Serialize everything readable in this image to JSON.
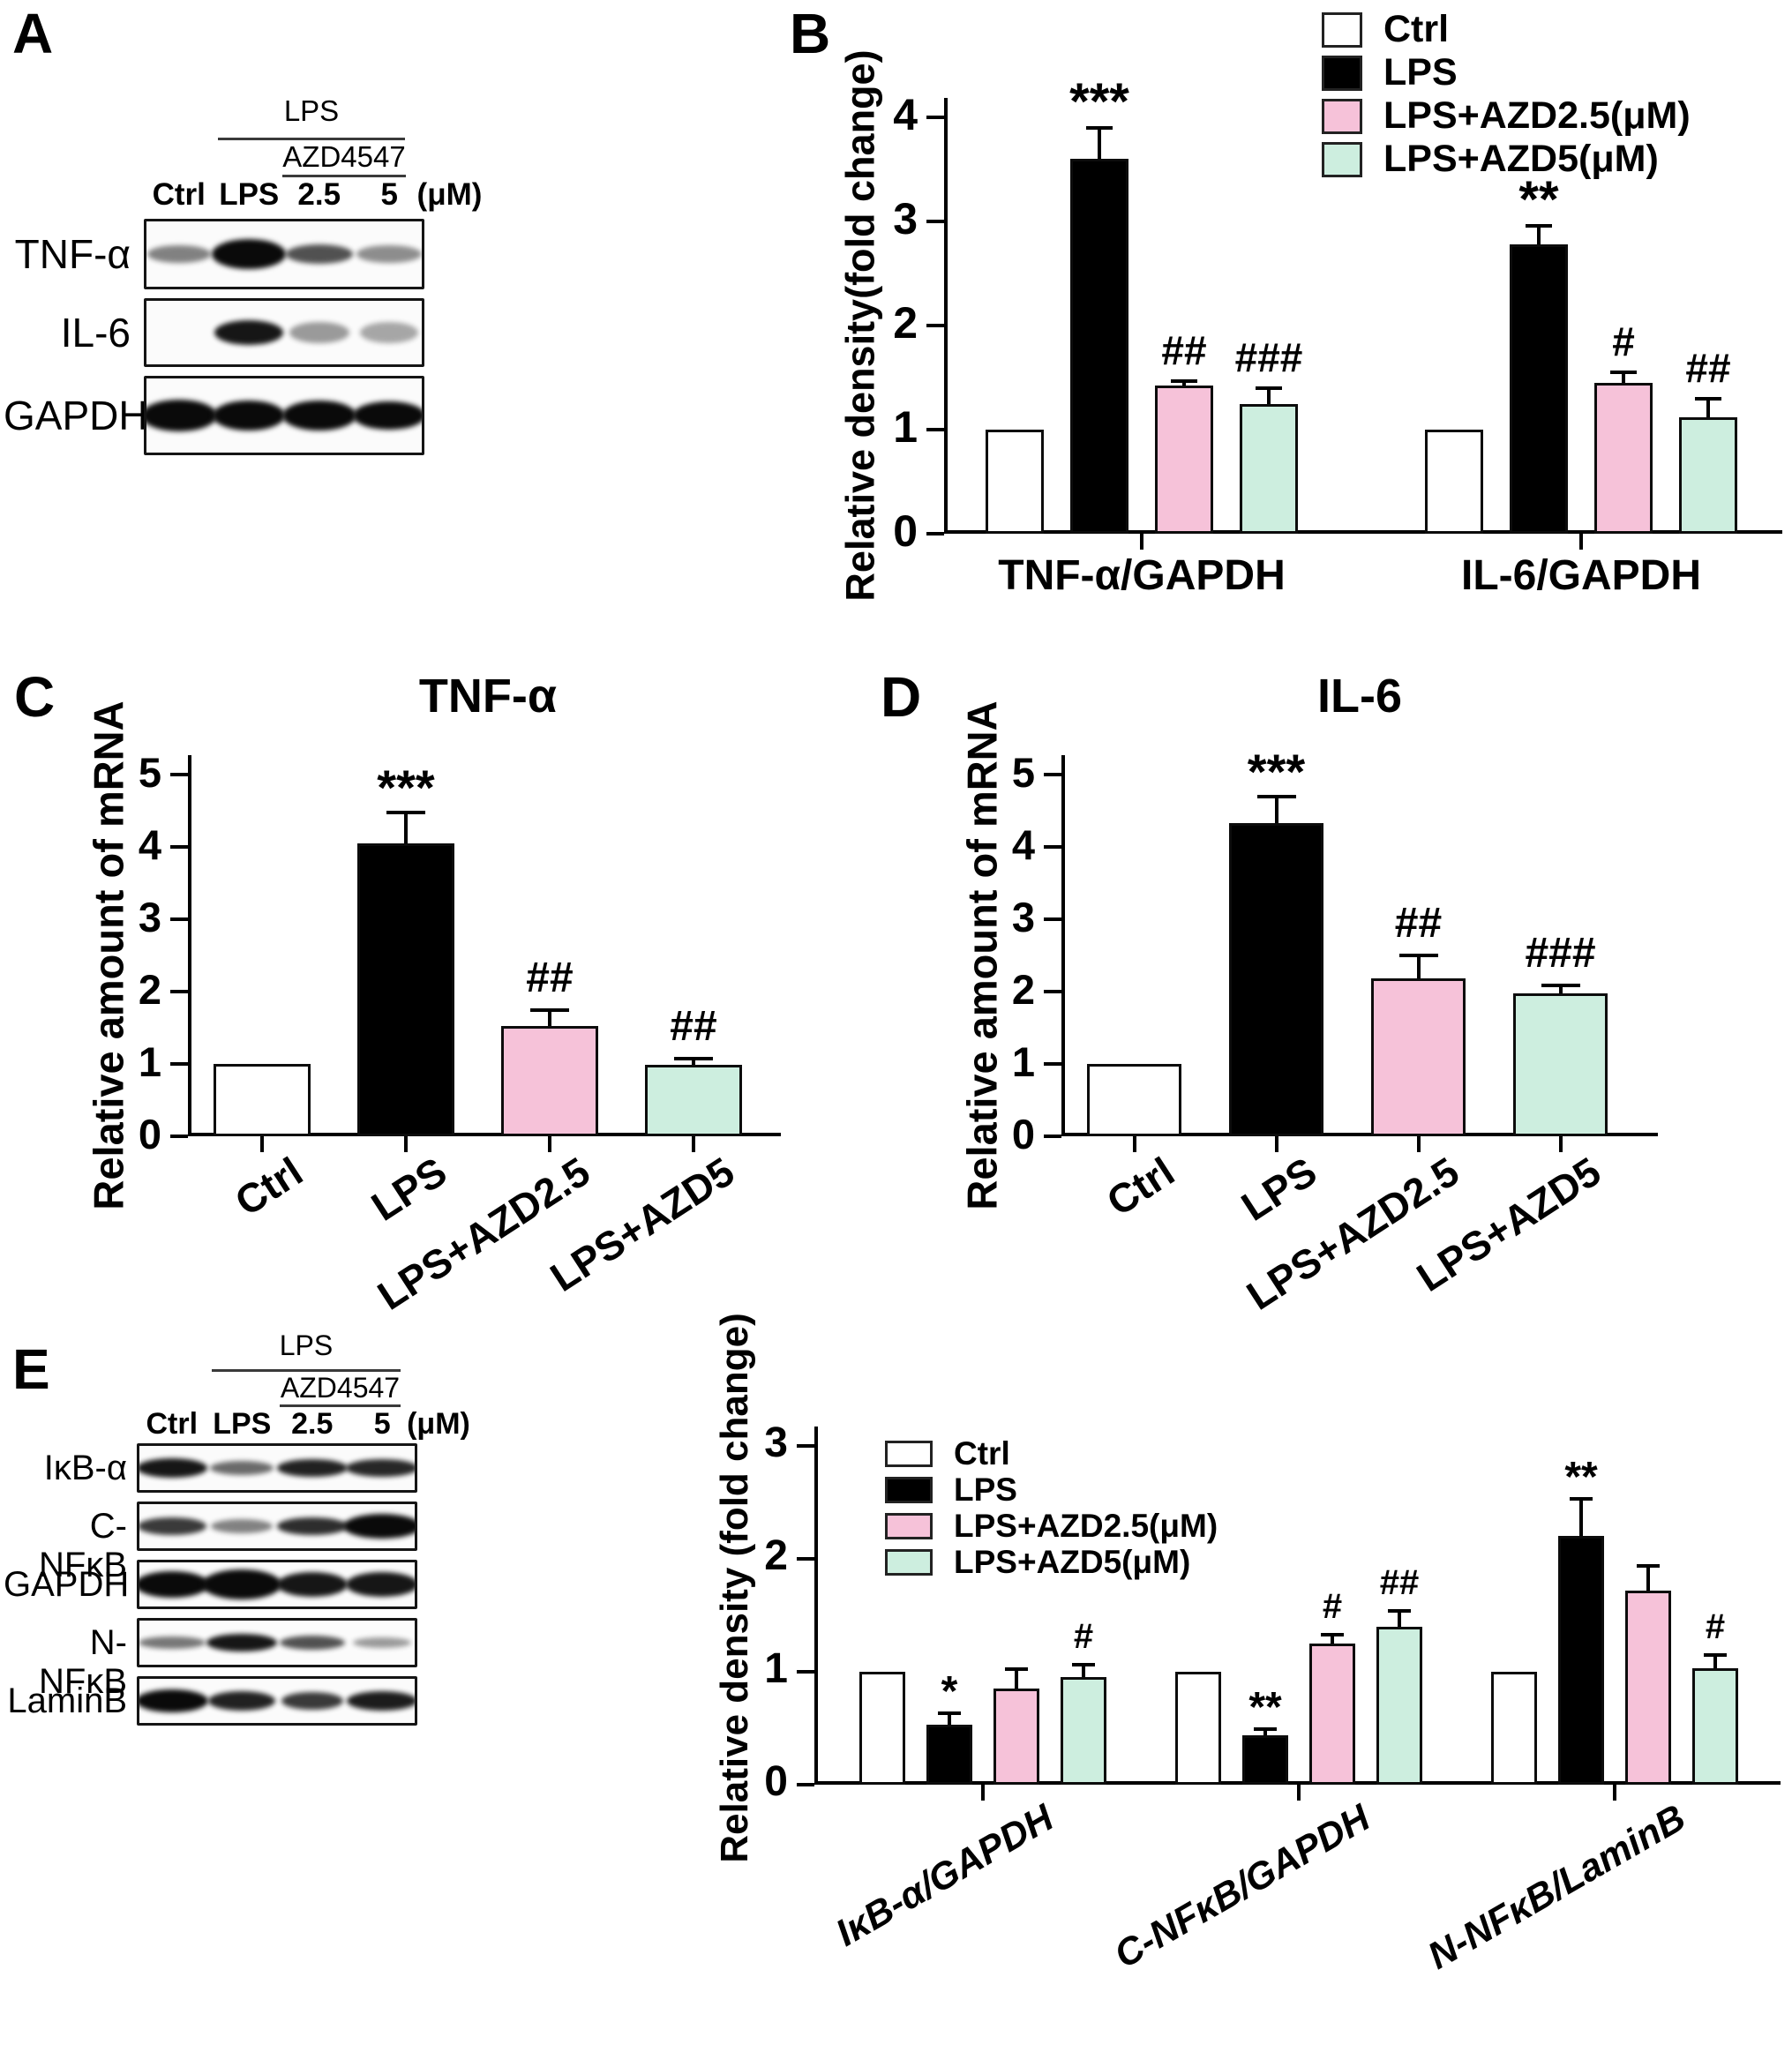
{
  "colors": {
    "ctrl": "#FFFFFF",
    "lps": "#000000",
    "lps_azd2_5": "#F6C2D9",
    "lps_azd5": "#CDEEDF",
    "outline": "#000000",
    "band": "#0A0A0A"
  },
  "legend_items": [
    {
      "key": "ctrl",
      "label": "Ctrl"
    },
    {
      "key": "lps",
      "label": "LPS"
    },
    {
      "key": "lps_azd2_5",
      "label": "LPS+AZD2.5(μM)"
    },
    {
      "key": "lps_azd5",
      "label": "LPS+AZD5(μM)"
    }
  ],
  "panels": {
    "A": {
      "letter": "A"
    },
    "B": {
      "letter": "B"
    },
    "C": {
      "letter": "C",
      "title": "TNF-α"
    },
    "D": {
      "letter": "D",
      "title": "IL-6"
    },
    "E": {
      "letter": "E"
    }
  },
  "blots": [
    {
      "panel": "A",
      "header": {
        "line1": "LPS",
        "line2": "AZD4547"
      },
      "lanes": [
        "Ctrl",
        "LPS",
        "2.5",
        "5"
      ],
      "unit": "(μM)",
      "rows": [
        {
          "label": "TNF-α",
          "bands": [
            {
              "w": 72,
              "h": 20,
              "d": 0.5
            },
            {
              "w": 84,
              "h": 34,
              "d": 1
            },
            {
              "w": 76,
              "h": 22,
              "d": 0.7
            },
            {
              "w": 74,
              "h": 20,
              "d": 0.45
            }
          ]
        },
        {
          "label": "IL-6",
          "bands": [
            {
              "w": 0,
              "h": 0,
              "d": 0
            },
            {
              "w": 78,
              "h": 28,
              "d": 0.95
            },
            {
              "w": 68,
              "h": 24,
              "d": 0.4
            },
            {
              "w": 66,
              "h": 24,
              "d": 0.35
            }
          ]
        },
        {
          "label": "GAPDH",
          "bands": [
            {
              "w": 86,
              "h": 36,
              "d": 1
            },
            {
              "w": 82,
              "h": 34,
              "d": 1
            },
            {
              "w": 84,
              "h": 34,
              "d": 1
            },
            {
              "w": 82,
              "h": 32,
              "d": 1
            }
          ]
        }
      ]
    },
    {
      "panel": "E",
      "header": {
        "line1": "LPS",
        "line2": "AZD4547"
      },
      "lanes": [
        "Ctrl",
        "LPS",
        "2.5",
        "5"
      ],
      "unit": "(μM)",
      "rows": [
        {
          "label": "IκB-α",
          "bands": [
            {
              "w": 80,
              "h": 22,
              "d": 0.95
            },
            {
              "w": 72,
              "h": 16,
              "d": 0.6
            },
            {
              "w": 80,
              "h": 20,
              "d": 0.9
            },
            {
              "w": 82,
              "h": 20,
              "d": 0.88
            }
          ]
        },
        {
          "label": "C-NFκB",
          "bands": [
            {
              "w": 78,
              "h": 20,
              "d": 0.8
            },
            {
              "w": 70,
              "h": 16,
              "d": 0.5
            },
            {
              "w": 80,
              "h": 20,
              "d": 0.85
            },
            {
              "w": 88,
              "h": 28,
              "d": 1
            }
          ]
        },
        {
          "label": "GAPDH",
          "bands": [
            {
              "w": 84,
              "h": 30,
              "d": 1
            },
            {
              "w": 90,
              "h": 34,
              "d": 1
            },
            {
              "w": 80,
              "h": 28,
              "d": 0.95
            },
            {
              "w": 82,
              "h": 28,
              "d": 0.95
            }
          ]
        },
        {
          "label": "N-NFκB",
          "bands": [
            {
              "w": 76,
              "h": 14,
              "d": 0.55
            },
            {
              "w": 80,
              "h": 20,
              "d": 0.95
            },
            {
              "w": 74,
              "h": 16,
              "d": 0.7
            },
            {
              "w": 66,
              "h": 12,
              "d": 0.4
            }
          ]
        },
        {
          "label": "LaminB",
          "bands": [
            {
              "w": 82,
              "h": 26,
              "d": 1
            },
            {
              "w": 76,
              "h": 22,
              "d": 0.9
            },
            {
              "w": 70,
              "h": 20,
              "d": 0.8
            },
            {
              "w": 80,
              "h": 22,
              "d": 0.92
            }
          ]
        }
      ]
    }
  ],
  "chart_data": [
    {
      "id": "B",
      "type": "bar",
      "ylabel": "Relative density(fold change)",
      "ylim": [
        0,
        4
      ],
      "yticks": [
        0,
        1,
        2,
        3,
        4
      ],
      "legend_position": "top-right",
      "series_keys": [
        "ctrl",
        "lps",
        "lps_azd2_5",
        "lps_azd5"
      ],
      "groups": [
        {
          "label": "TNF-α/GAPDH",
          "values": [
            1.0,
            3.6,
            1.42,
            1.25
          ],
          "errors": [
            0,
            0.3,
            0.05,
            0.15
          ],
          "sig": [
            "",
            "***",
            "##",
            "###"
          ]
        },
        {
          "label": "IL-6/GAPDH",
          "values": [
            1.0,
            2.78,
            1.45,
            1.12
          ],
          "errors": [
            0,
            0.18,
            0.1,
            0.18
          ],
          "sig": [
            "",
            "**",
            "#",
            "##"
          ]
        }
      ]
    },
    {
      "id": "C",
      "type": "bar",
      "title": "TNF-α",
      "ylabel": "Relative amount of mRNA",
      "ylim": [
        0,
        5
      ],
      "yticks": [
        0,
        1,
        2,
        3,
        4,
        5
      ],
      "series_keys": [
        "ctrl",
        "lps",
        "lps_azd2_5",
        "lps_azd5"
      ],
      "categories": [
        "Ctrl",
        "LPS",
        "LPS+AZD2.5",
        "LPS+AZD5"
      ],
      "values": [
        1.0,
        4.05,
        1.53,
        0.99
      ],
      "errors": [
        0,
        0.42,
        0.22,
        0.08
      ],
      "sig": [
        "",
        "***",
        "##",
        "##"
      ]
    },
    {
      "id": "D",
      "type": "bar",
      "title": "IL-6",
      "ylabel": "Relative amount of mRNA",
      "ylim": [
        0,
        5
      ],
      "yticks": [
        0,
        1,
        2,
        3,
        4,
        5
      ],
      "series_keys": [
        "ctrl",
        "lps",
        "lps_azd2_5",
        "lps_azd5"
      ],
      "categories": [
        "Ctrl",
        "LPS",
        "LPS+AZD2.5",
        "LPS+AZD5"
      ],
      "values": [
        1.0,
        4.33,
        2.18,
        1.97
      ],
      "errors": [
        0,
        0.37,
        0.32,
        0.12
      ],
      "sig": [
        "",
        "***",
        "##",
        "###"
      ]
    },
    {
      "id": "E",
      "type": "bar",
      "ylabel": "Relative density (fold change)",
      "ylim": [
        0,
        3
      ],
      "yticks": [
        0,
        1,
        2,
        3
      ],
      "legend_position": "top-left",
      "series_keys": [
        "ctrl",
        "lps",
        "lps_azd2_5",
        "lps_azd5"
      ],
      "groups": [
        {
          "label": "IκB-α/GAPDH",
          "values": [
            1.0,
            0.53,
            0.85,
            0.95
          ],
          "errors": [
            0,
            0.1,
            0.17,
            0.11
          ],
          "sig": [
            "",
            "*",
            "",
            "#"
          ]
        },
        {
          "label": "C-NFκB/GAPDH",
          "values": [
            1.0,
            0.44,
            1.25,
            1.4
          ],
          "errors": [
            0,
            0.05,
            0.08,
            0.14
          ],
          "sig": [
            "",
            "**",
            "#",
            "##"
          ]
        },
        {
          "label": "N-NFκB/LaminB",
          "values": [
            1.0,
            2.2,
            1.72,
            1.03
          ],
          "errors": [
            0,
            0.33,
            0.22,
            0.12
          ],
          "sig": [
            "",
            "**",
            "",
            "#"
          ]
        }
      ]
    }
  ]
}
